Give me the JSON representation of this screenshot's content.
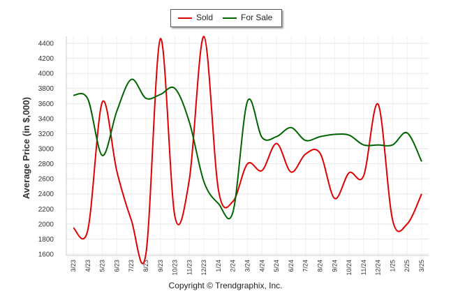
{
  "chart_data": {
    "type": "line",
    "title": "",
    "xlabel": "",
    "ylabel": "Average Price (in $,000)",
    "categories": [
      "3/23",
      "4/23",
      "5/23",
      "6/23",
      "7/23",
      "8/23",
      "9/23",
      "10/23",
      "11/23",
      "12/23",
      "1/24",
      "2/24",
      "3/24",
      "4/24",
      "5/24",
      "6/24",
      "7/24",
      "8/24",
      "9/24",
      "10/24",
      "11/24",
      "12/24",
      "1/25",
      "2/25",
      "3/25"
    ],
    "ylim": [
      1600,
      4400
    ],
    "yticks": [
      1600,
      1800,
      2000,
      2200,
      2400,
      2600,
      2800,
      3000,
      3200,
      3400,
      3600,
      3800,
      4000,
      4200,
      4400
    ],
    "grid": true,
    "legend_position": "top-center",
    "series": [
      {
        "name": "Sold",
        "color": "#e00000",
        "values": [
          1950,
          1920,
          3620,
          2700,
          2050,
          1600,
          4460,
          2100,
          2600,
          4490,
          2450,
          2300,
          2800,
          2710,
          3070,
          2690,
          2930,
          2940,
          2340,
          2680,
          2640,
          3590,
          2050,
          2000,
          2400
        ]
      },
      {
        "name": "For Sale",
        "color": "#006400",
        "values": [
          3710,
          3660,
          2910,
          3500,
          3920,
          3670,
          3720,
          3800,
          3350,
          2560,
          2270,
          2160,
          3630,
          3150,
          3160,
          3280,
          3110,
          3160,
          3190,
          3180,
          3050,
          3050,
          3050,
          3210,
          2830
        ]
      }
    ]
  },
  "legend": {
    "sold_label": "Sold",
    "for_sale_label": "For Sale"
  },
  "footer": {
    "copyright": "Copyright © Trendgraphix, Inc."
  }
}
